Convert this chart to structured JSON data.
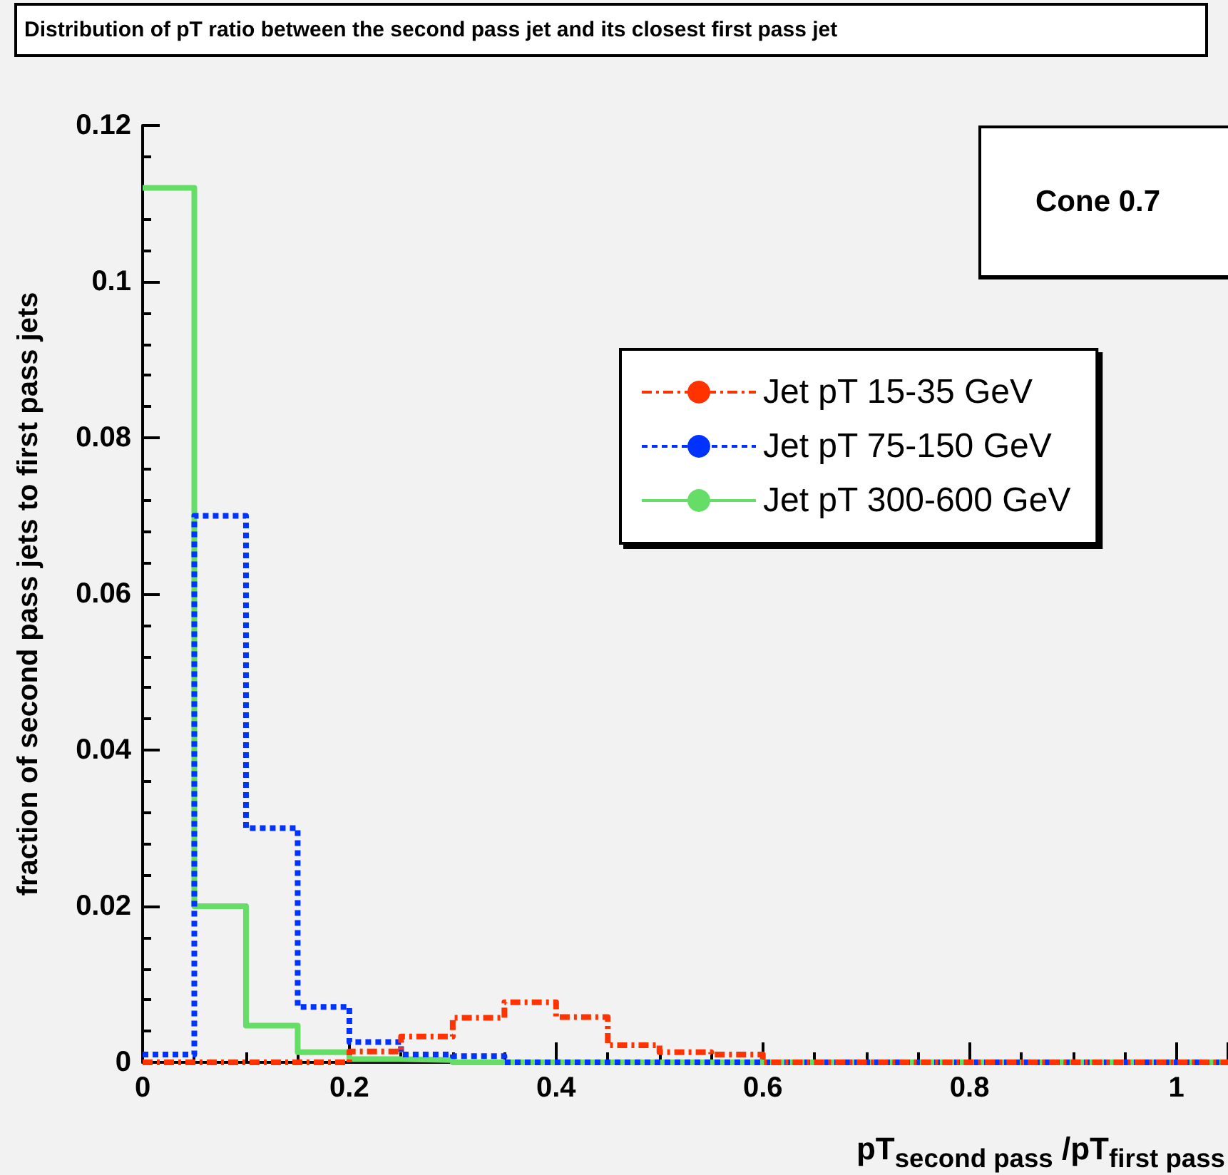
{
  "chart_data": {
    "type": "step",
    "title": "Distribution of pT ratio between the second pass jet and its closest first pass jet",
    "xlabel": "pT$_{second pass}$ /pT$_{first pass}$",
    "ylabel": "fraction of second pass jets to first pass jets",
    "annotations": [
      "Cone 0.7"
    ],
    "x": [
      0,
      0.05,
      0.1,
      0.15,
      0.2,
      0.25,
      0.3,
      0.35,
      0.4,
      0.45,
      0.5,
      0.55,
      0.6,
      0.65,
      0.7,
      0.75,
      0.8,
      0.85,
      0.9,
      0.95,
      1,
      1.05
    ],
    "series": [
      {
        "name": "Jet pT 15-35 GeV",
        "color": "#ff3300",
        "line_style": "dashed",
        "values": [
          0,
          0,
          0,
          0,
          0.0014,
          0.0033,
          0.0057,
          0.0077,
          0.0058,
          0.0022,
          0.0013,
          0.001,
          0,
          0,
          0,
          0,
          0,
          0,
          0,
          0,
          0,
          0
        ]
      },
      {
        "name": "Jet pT 75-150 GeV",
        "color": "#0033ff",
        "line_style": "dotted",
        "values": [
          0.001,
          0.07,
          0.03,
          0.0071,
          0.0026,
          0.001,
          0.0008,
          0,
          0,
          0,
          0,
          0,
          0,
          0,
          0,
          0,
          0,
          0,
          0,
          0,
          0,
          0
        ]
      },
      {
        "name": "Jet pT 300-600 GeV",
        "color": "#66dd66",
        "line_style": "solid",
        "values": [
          0.112,
          0.02,
          0.0047,
          0.0013,
          0.0004,
          0.0003,
          0,
          0,
          0,
          0,
          0,
          0,
          0,
          0,
          0,
          0,
          0,
          0,
          0,
          0,
          0,
          0
        ]
      }
    ],
    "xlim": [
      0,
      1.05
    ],
    "xticks": [
      0,
      0.2,
      0.4,
      0.6,
      0.8,
      1
    ],
    "ylim": [
      0,
      0.12
    ],
    "yticks": [
      0,
      0.02,
      0.04,
      0.06,
      0.08,
      0.1,
      0.12
    ],
    "grid": false,
    "legend": "right",
    "marker": "none"
  }
}
